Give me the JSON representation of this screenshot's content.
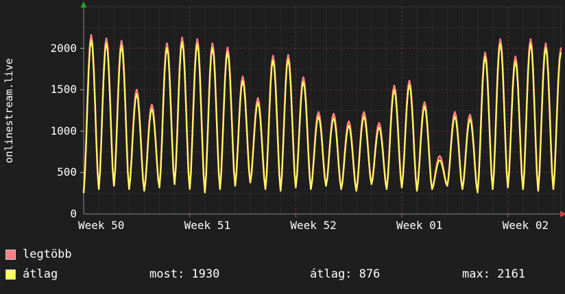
{
  "watermark": "onlinestream.live",
  "chart_data": {
    "type": "line",
    "title": "",
    "x_tick_labels": [
      "Week 50",
      "Week 51",
      "Week 52",
      "Week 01",
      "Week 02"
    ],
    "y_ticks": [
      0,
      500,
      1000,
      1500,
      2000
    ],
    "ylim": [
      0,
      2500
    ],
    "days_total": 31.5,
    "days_per_week": 7,
    "grid": "on",
    "legend_position": "bottom-left",
    "troughs": [
      260,
      300,
      340,
      300,
      280,
      320,
      360,
      300,
      260,
      300,
      340,
      380,
      300,
      280,
      320,
      300,
      340,
      300,
      280,
      360,
      300,
      320,
      280,
      300,
      340,
      300,
      260,
      300,
      320,
      300,
      280,
      300
    ],
    "series": [
      {
        "name": "legtöbb",
        "color": "#ff8080",
        "peaks": [
          2161,
          2120,
          2090,
          1500,
          1320,
          2060,
          2130,
          2110,
          2060,
          2010,
          1660,
          1400,
          1910,
          1920,
          1650,
          1230,
          1210,
          1120,
          1230,
          1100,
          1550,
          1610,
          1350,
          700,
          1230,
          1200,
          1950,
          2110,
          1900,
          2110,
          2060,
          2000
        ]
      },
      {
        "name": "átlag",
        "color": "#ffff5e",
        "peaks": [
          2101,
          2060,
          2030,
          1445,
          1265,
          2005,
          2070,
          2050,
          2005,
          1955,
          1605,
          1345,
          1855,
          1865,
          1595,
          1175,
          1155,
          1065,
          1175,
          1045,
          1495,
          1555,
          1295,
          650,
          1175,
          1145,
          1895,
          2055,
          1845,
          2055,
          2005,
          1945
        ]
      }
    ],
    "stats": {
      "most": 1930,
      "atlag": 876,
      "max": 2161
    },
    "colors": {
      "background": "#1e1e1e",
      "grid_minor": "#2b2b2b",
      "grid_major": "#c85050",
      "axis": "#8a8a8a",
      "y_arrow": "#27a327",
      "x_arrow": "#cc4343",
      "text": "#ffffff"
    }
  },
  "legend": {
    "series1_label": "legtöbb",
    "series2_label": "átlag",
    "most": "most: 1930",
    "atlag": "átlag: 876",
    "max": "max: 2161"
  }
}
